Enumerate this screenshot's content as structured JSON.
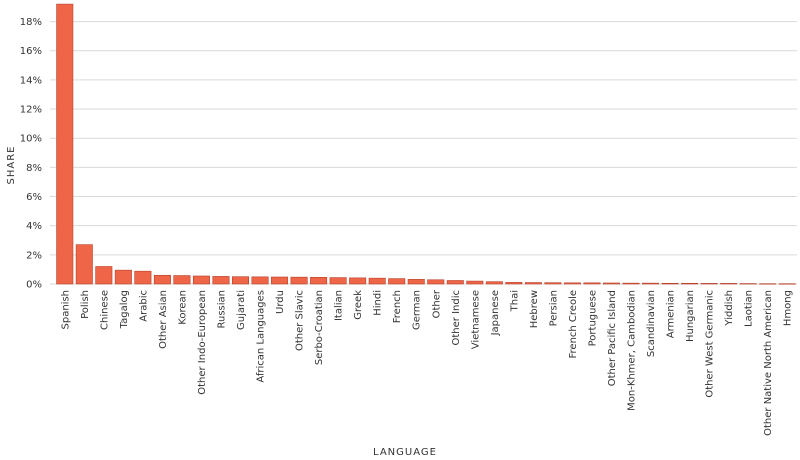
{
  "chart_data": {
    "type": "bar",
    "xlabel": "LANGUAGE",
    "ylabel": "SHARE",
    "ylim": [
      0,
      0.19
    ],
    "yticks": [
      0,
      0.02,
      0.04,
      0.06,
      0.08,
      0.1,
      0.12,
      0.14,
      0.16,
      0.18
    ],
    "ytick_format": "percent",
    "grid": true,
    "bar_color": "#ef6548",
    "categories": [
      "Spanish",
      "Polish",
      "Chinese",
      "Tagalog",
      "Arabic",
      "Other Asian",
      "Korean",
      "Other Indo-European",
      "Russian",
      "Gujarati",
      "African Languages",
      "Urdu",
      "Other Slavic",
      "Serbo-Croatian",
      "Italian",
      "Greek",
      "Hindi",
      "French",
      "German",
      "Other",
      "Other Indic",
      "Vietnamese",
      "Japanese",
      "Thai",
      "Hebrew",
      "Persian",
      "French Creole",
      "Portuguese",
      "Other Pacific Island",
      "Mon-Khmer, Cambodian",
      "Scandinavian",
      "Armenian",
      "Hungarian",
      "Other West Germanic",
      "Yiddish",
      "Laotian",
      "Other Native North American",
      "Hmong"
    ],
    "values": [
      0.192,
      0.027,
      0.012,
      0.0095,
      0.0088,
      0.006,
      0.0058,
      0.0055,
      0.0052,
      0.005,
      0.0049,
      0.0048,
      0.0047,
      0.0046,
      0.0044,
      0.0042,
      0.004,
      0.0037,
      0.0032,
      0.0029,
      0.0024,
      0.002,
      0.0016,
      0.0011,
      0.001,
      0.0009,
      0.0008,
      0.0008,
      0.0007,
      0.0006,
      0.0006,
      0.0005,
      0.0005,
      0.0004,
      0.0004,
      0.0003,
      0.0002,
      0.0002
    ]
  }
}
